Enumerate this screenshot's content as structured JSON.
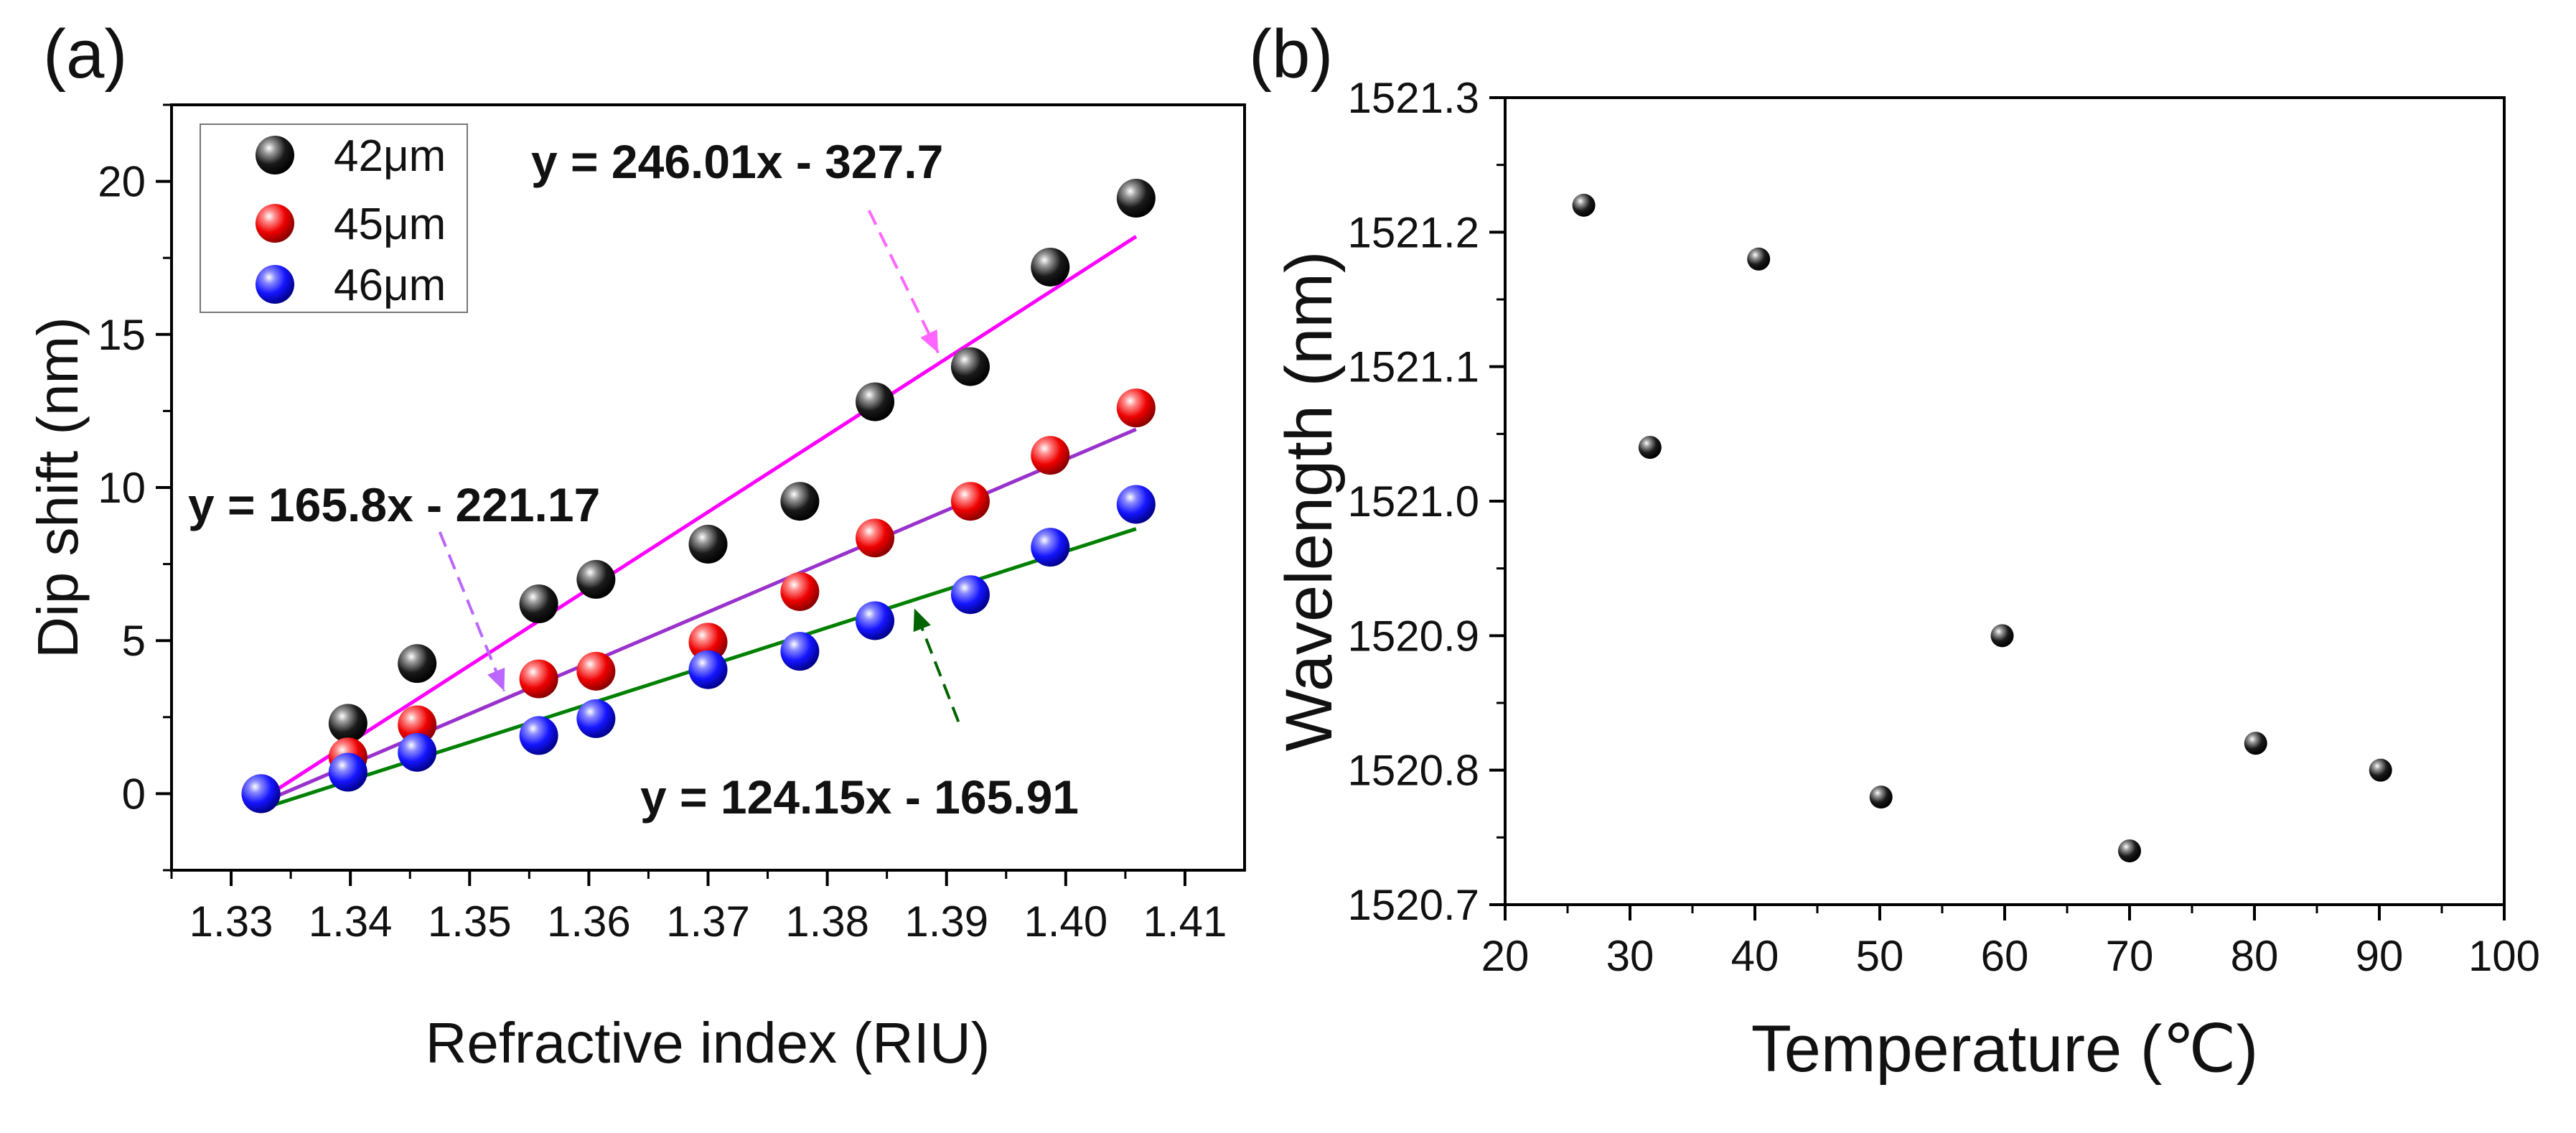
{
  "chart_data": [
    {
      "panel_label": "(a)",
      "type": "scatter",
      "xlabel": "Refractive index (RIU)",
      "ylabel": "Dip shift (nm)",
      "xlim": [
        1.325,
        1.415
      ],
      "ylim": [
        -2.5,
        22.5
      ],
      "xticks": [
        1.33,
        1.34,
        1.35,
        1.36,
        1.37,
        1.38,
        1.39,
        1.4,
        1.41
      ],
      "xtick_labels": [
        "1.33",
        "1.34",
        "1.35",
        "1.36",
        "1.37",
        "1.38",
        "1.39",
        "1.40",
        "1.41"
      ],
      "yticks": [
        0,
        5,
        10,
        15,
        20
      ],
      "ytick_labels": [
        "0",
        "5",
        "10",
        "15",
        "20"
      ],
      "legend_position": "top-left",
      "series": [
        {
          "name": "42μm",
          "marker_color": "#000000",
          "x": [
            1.3325,
            1.3398,
            1.3456,
            1.3558,
            1.3606,
            1.37,
            1.3777,
            1.384,
            1.392,
            1.3987,
            1.4059
          ],
          "y": [
            0.0,
            2.3,
            4.25,
            6.2,
            7.0,
            8.15,
            9.55,
            12.8,
            13.95,
            17.2,
            19.45
          ]
        },
        {
          "name": "45μm",
          "marker_color": "#ff0000",
          "x": [
            1.3325,
            1.3398,
            1.3456,
            1.3558,
            1.3606,
            1.37,
            1.3777,
            1.384,
            1.392,
            1.3987,
            1.4059
          ],
          "y": [
            0.0,
            1.2,
            2.25,
            3.75,
            4.0,
            4.95,
            6.6,
            8.35,
            9.55,
            11.05,
            12.6
          ]
        },
        {
          "name": "46μm",
          "marker_color": "#0000ff",
          "x": [
            1.3325,
            1.3398,
            1.3456,
            1.3558,
            1.3606,
            1.37,
            1.3777,
            1.384,
            1.392,
            1.3987,
            1.4059
          ],
          "y": [
            0.0,
            0.7,
            1.35,
            1.9,
            2.45,
            4.05,
            4.65,
            5.65,
            6.5,
            8.05,
            9.45
          ]
        }
      ],
      "fit_lines": [
        {
          "equation": "y = 246.01x - 327.7",
          "color": "#ff00ff",
          "x": [
            1.3325,
            1.4059
          ],
          "y": [
            -0.2,
            18.2
          ]
        },
        {
          "equation": "y = 165.8x - 221.17",
          "color": "#9932cc",
          "x": [
            1.3325,
            1.4059
          ],
          "y": [
            -0.3,
            11.9
          ]
        },
        {
          "equation": "y = 124.15x - 165.91",
          "color": "#008000",
          "x": [
            1.3325,
            1.4059
          ],
          "y": [
            -0.5,
            8.65
          ]
        }
      ],
      "annotations": [
        {
          "text": "y = 246.01x - 327.7",
          "anchor": [
            1.366,
            20.5
          ],
          "arrow_color": "#ff66ff",
          "arrow_from": [
            1.3835,
            19.05
          ],
          "arrow_to": [
            1.3893,
            14.4
          ]
        },
        {
          "text": "y = 165.8x - 221.17",
          "anchor": [
            1.342,
            10.0
          ],
          "arrow_color": "#bb66ff",
          "arrow_from": [
            1.3475,
            8.55
          ],
          "arrow_to": [
            1.3529,
            3.35
          ]
        },
        {
          "text": "y = 124.15x - 165.91",
          "anchor": [
            1.3944,
            -0.1
          ],
          "arrow_color": "#006400",
          "arrow_from": [
            1.391,
            2.35
          ],
          "arrow_to": [
            1.3873,
            6.05
          ]
        }
      ]
    },
    {
      "panel_label": "(b)",
      "type": "scatter",
      "xlabel": "Temperature (℃)",
      "ylabel": "Wavelength (nm)",
      "xlim": [
        20,
        100
      ],
      "ylim": [
        1520.7,
        1521.3
      ],
      "xticks": [
        20,
        30,
        40,
        50,
        60,
        70,
        80,
        90,
        100
      ],
      "xtick_labels": [
        "20",
        "30",
        "40",
        "50",
        "60",
        "70",
        "80",
        "90",
        "100"
      ],
      "yticks": [
        1520.7,
        1520.8,
        1520.9,
        1521.0,
        1521.1,
        1521.2,
        1521.3
      ],
      "ytick_labels": [
        "1520.7",
        "1520.8",
        "1520.9",
        "1521.0",
        "1521.1",
        "1521.2",
        "1521.3"
      ],
      "series": [
        {
          "name": "wavelength",
          "marker_color": "#000000",
          "x": [
            26.3,
            31.6,
            40.3,
            50.1,
            59.8,
            70.0,
            80.1,
            90.1
          ],
          "y": [
            1521.22,
            1521.04,
            1521.18,
            1520.78,
            1520.9,
            1520.74,
            1520.82,
            1520.8
          ]
        }
      ]
    }
  ]
}
